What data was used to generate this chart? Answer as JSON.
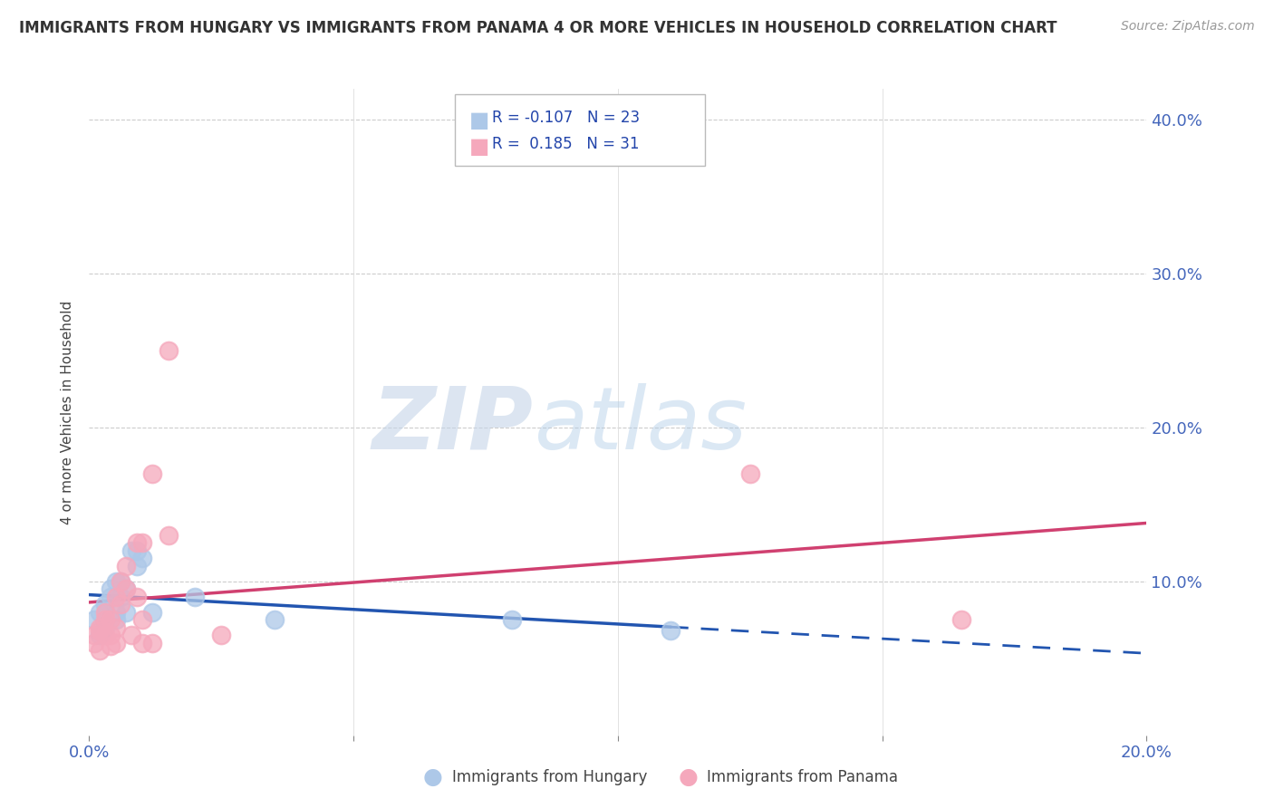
{
  "title": "IMMIGRANTS FROM HUNGARY VS IMMIGRANTS FROM PANAMA 4 OR MORE VEHICLES IN HOUSEHOLD CORRELATION CHART",
  "source": "Source: ZipAtlas.com",
  "ylabel": "4 or more Vehicles in Household",
  "xlim": [
    0.0,
    0.2
  ],
  "ylim": [
    0.0,
    0.42
  ],
  "xticks": [
    0.0,
    0.05,
    0.1,
    0.15,
    0.2
  ],
  "yticks": [
    0.0,
    0.1,
    0.2,
    0.3,
    0.4
  ],
  "ytick_labels_right": [
    "",
    "10.0%",
    "20.0%",
    "30.0%",
    "40.0%"
  ],
  "xtick_labels": [
    "0.0%",
    "",
    "",
    "",
    "20.0%"
  ],
  "legend_labels": [
    "Immigrants from Hungary",
    "Immigrants from Panama"
  ],
  "hungary_R": "-0.107",
  "hungary_N": "23",
  "panama_R": "0.185",
  "panama_N": "31",
  "hungary_color": "#adc8e8",
  "panama_color": "#f5a8bc",
  "hungary_line_color": "#2255b0",
  "panama_line_color": "#d04070",
  "hungary_scatter": [
    [
      0.001,
      0.075
    ],
    [
      0.002,
      0.08
    ],
    [
      0.002,
      0.065
    ],
    [
      0.003,
      0.085
    ],
    [
      0.003,
      0.07
    ],
    [
      0.004,
      0.09
    ],
    [
      0.004,
      0.095
    ],
    [
      0.005,
      0.08
    ],
    [
      0.005,
      0.075
    ],
    [
      0.005,
      0.1
    ],
    [
      0.006,
      0.1
    ],
    [
      0.006,
      0.09
    ],
    [
      0.007,
      0.095
    ],
    [
      0.007,
      0.08
    ],
    [
      0.008,
      0.12
    ],
    [
      0.009,
      0.12
    ],
    [
      0.009,
      0.11
    ],
    [
      0.01,
      0.115
    ],
    [
      0.012,
      0.08
    ],
    [
      0.02,
      0.09
    ],
    [
      0.035,
      0.075
    ],
    [
      0.08,
      0.075
    ],
    [
      0.11,
      0.068
    ]
  ],
  "panama_scatter": [
    [
      0.001,
      0.065
    ],
    [
      0.001,
      0.06
    ],
    [
      0.002,
      0.07
    ],
    [
      0.002,
      0.068
    ],
    [
      0.002,
      0.055
    ],
    [
      0.003,
      0.075
    ],
    [
      0.003,
      0.065
    ],
    [
      0.003,
      0.08
    ],
    [
      0.004,
      0.075
    ],
    [
      0.004,
      0.065
    ],
    [
      0.004,
      0.058
    ],
    [
      0.005,
      0.09
    ],
    [
      0.005,
      0.07
    ],
    [
      0.005,
      0.06
    ],
    [
      0.006,
      0.1
    ],
    [
      0.006,
      0.085
    ],
    [
      0.007,
      0.11
    ],
    [
      0.007,
      0.095
    ],
    [
      0.008,
      0.065
    ],
    [
      0.009,
      0.125
    ],
    [
      0.009,
      0.09
    ],
    [
      0.01,
      0.125
    ],
    [
      0.01,
      0.075
    ],
    [
      0.01,
      0.06
    ],
    [
      0.012,
      0.17
    ],
    [
      0.012,
      0.06
    ],
    [
      0.015,
      0.25
    ],
    [
      0.015,
      0.13
    ],
    [
      0.025,
      0.065
    ],
    [
      0.125,
      0.17
    ],
    [
      0.165,
      0.075
    ]
  ],
  "watermark_zip": "ZIP",
  "watermark_atlas": "atlas",
  "background_color": "#ffffff",
  "grid_color": "#cccccc"
}
